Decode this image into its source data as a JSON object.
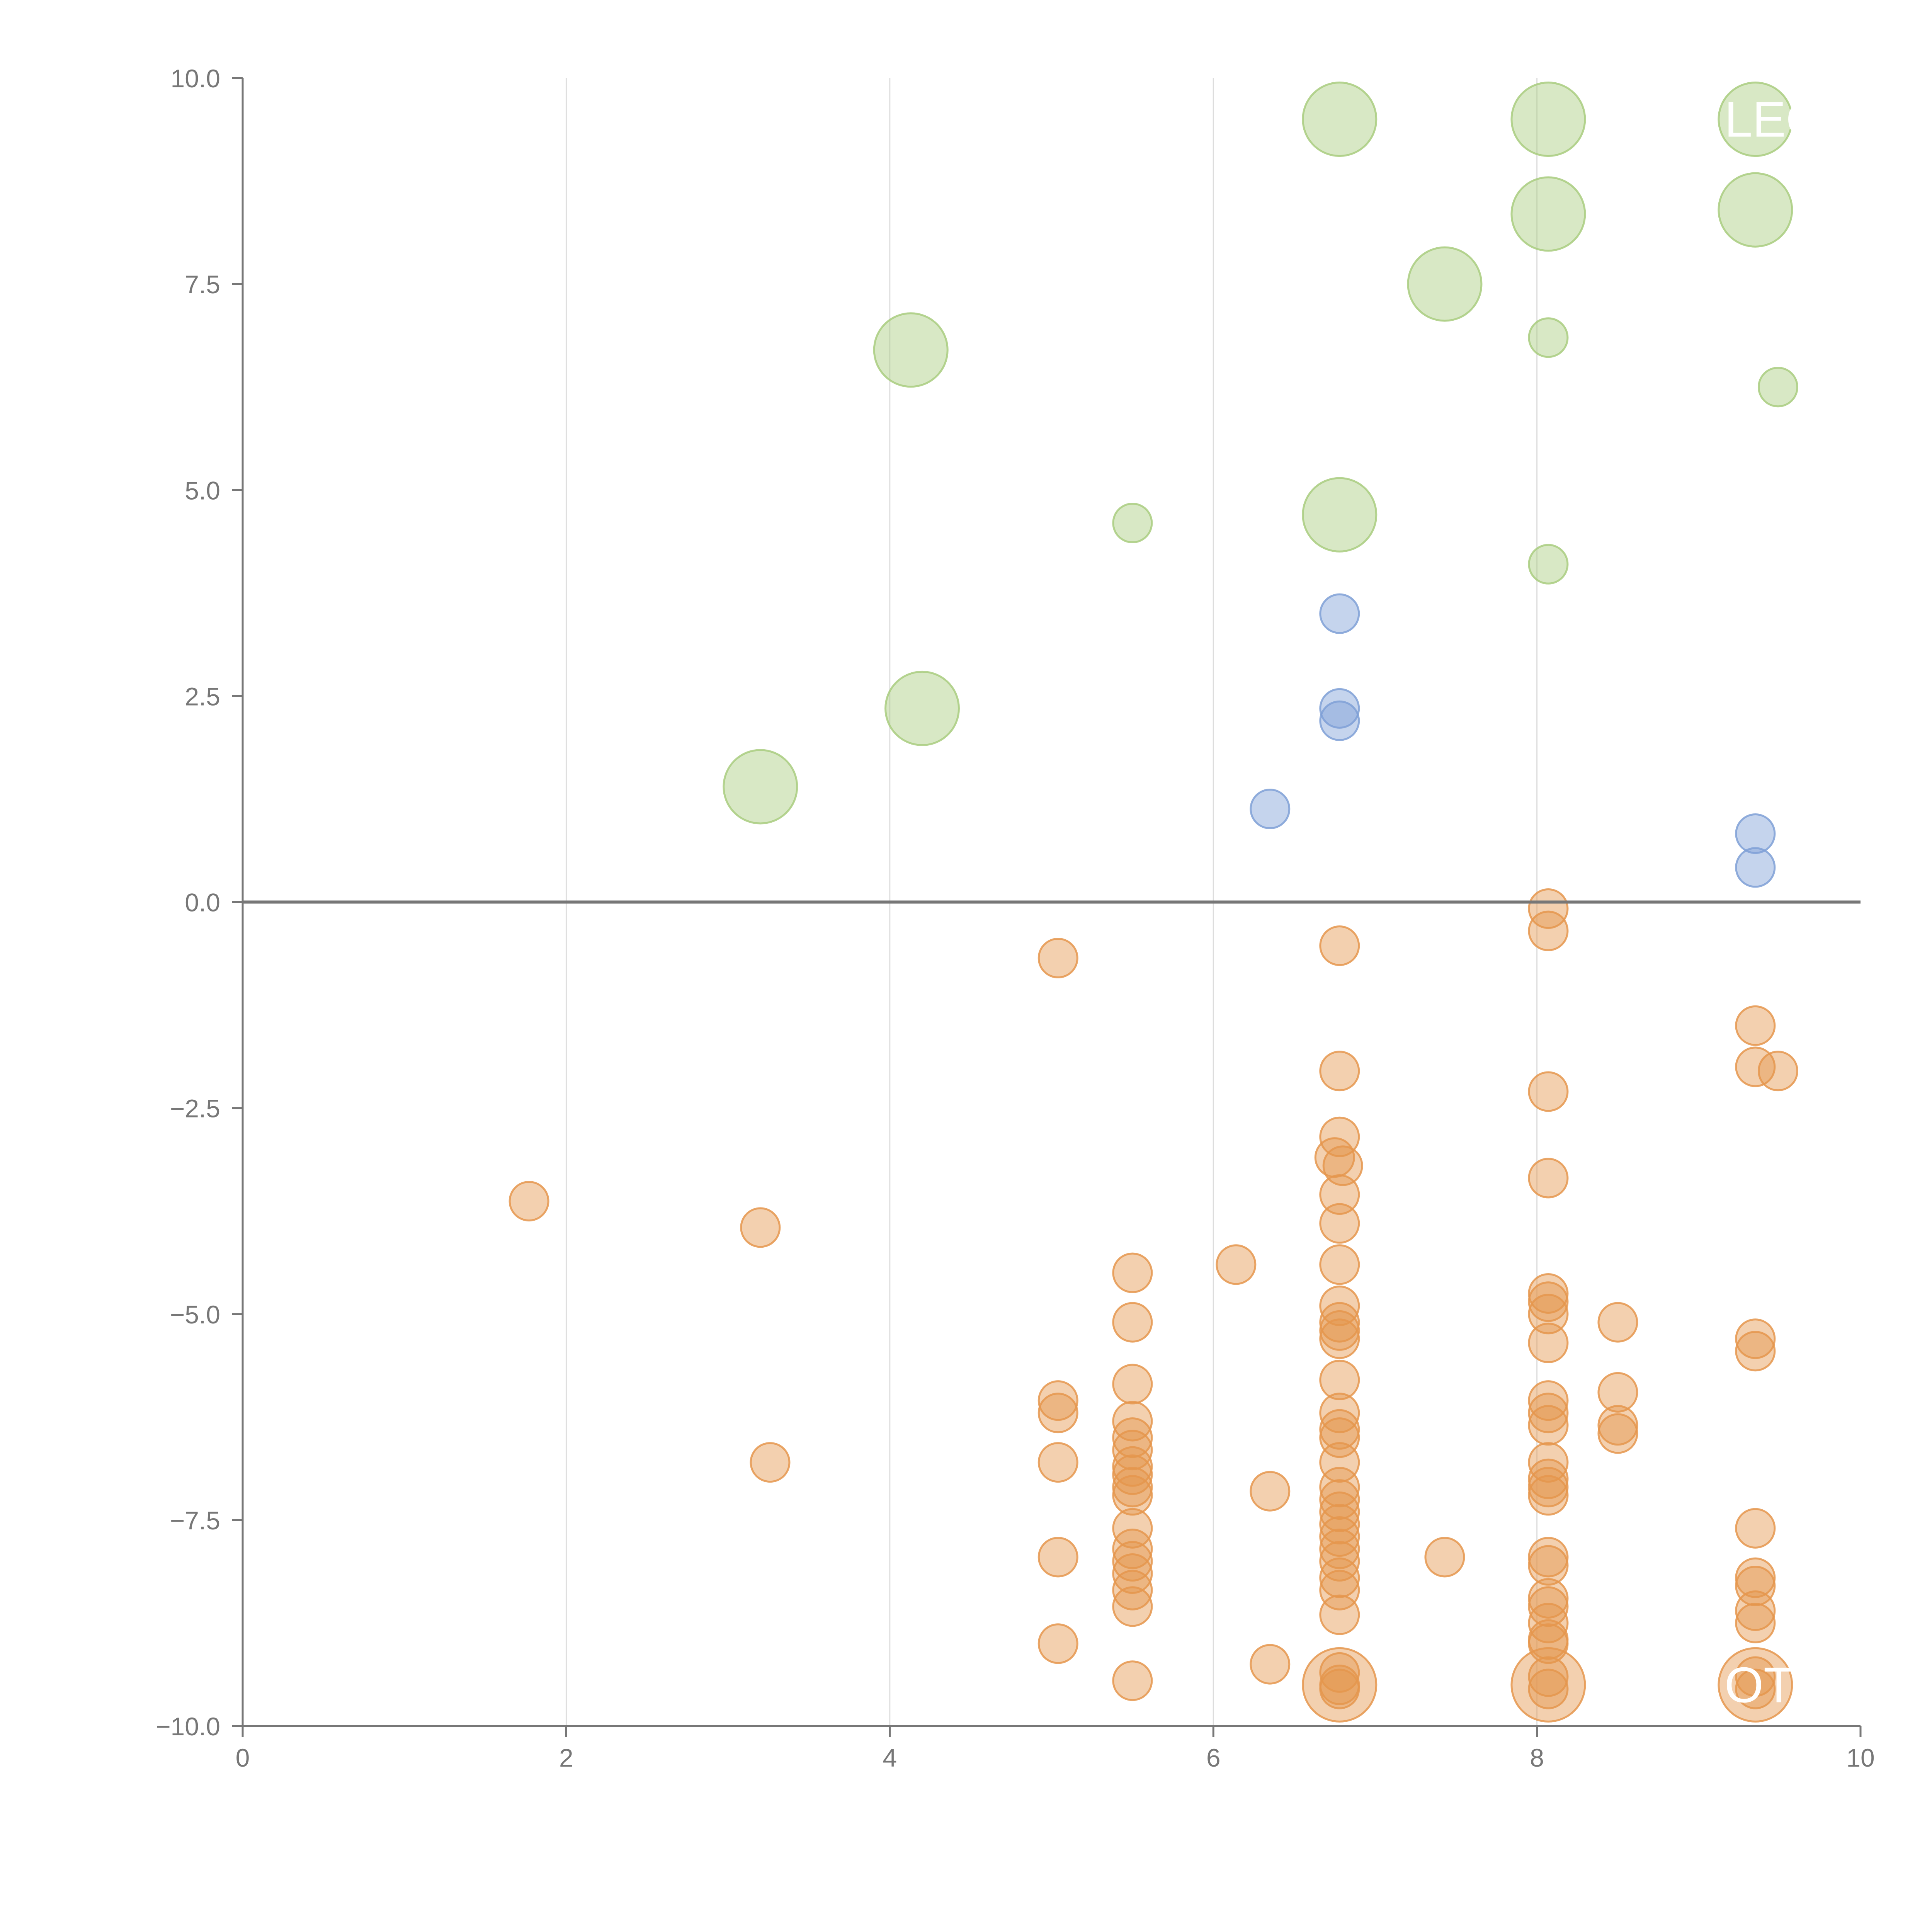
{
  "chart_data": {
    "type": "scatter",
    "title": "",
    "xlabel": "",
    "ylabel": "",
    "xlim": [
      0,
      10
    ],
    "ylim": [
      -10,
      10
    ],
    "x_ticks": [
      0,
      2,
      4,
      6,
      8,
      10
    ],
    "y_ticks": [
      10,
      7.5,
      5,
      2.5,
      0,
      -2.5,
      -5,
      -7.5,
      -10
    ],
    "x_tick_labels": [
      "0",
      "2",
      "4",
      "6",
      "8",
      "10"
    ],
    "y_tick_labels": [
      "10.0",
      "7.5",
      "5.0",
      "2.5",
      "0.0",
      "−2.5",
      "−5.0",
      "−7.5",
      "−10.0"
    ],
    "vertical_gridlines": true,
    "zero_line": true,
    "colors": {
      "green": "#a9cc7f",
      "blue": "#7fa0d6",
      "orange": "#e5964e",
      "axis": "#777777",
      "grid": "#dddddd"
    },
    "series": [
      {
        "name": "green",
        "color": "#a9cc7f",
        "points": [
          [
            6.78,
            9.5,
            2
          ],
          [
            8.07,
            9.5,
            2
          ],
          [
            9.35,
            9.5,
            2
          ],
          [
            8.07,
            8.35,
            2
          ],
          [
            9.35,
            8.4,
            2
          ],
          [
            7.43,
            7.5,
            2
          ],
          [
            4.13,
            6.7,
            2
          ],
          [
            8.07,
            6.85,
            1
          ],
          [
            9.49,
            6.25,
            1
          ],
          [
            5.5,
            4.6,
            1
          ],
          [
            6.78,
            4.7,
            2
          ],
          [
            8.07,
            4.1,
            1
          ],
          [
            4.2,
            2.35,
            2
          ],
          [
            3.2,
            1.4,
            2
          ]
        ]
      },
      {
        "name": "blue",
        "color": "#7fa0d6",
        "points": [
          [
            6.78,
            3.5,
            1
          ],
          [
            6.78,
            2.35,
            1
          ],
          [
            6.78,
            2.2,
            1
          ],
          [
            6.35,
            1.13,
            1
          ],
          [
            9.35,
            0.83,
            1
          ],
          [
            9.35,
            0.42,
            1
          ]
        ]
      },
      {
        "name": "orange",
        "color": "#e5964e",
        "points": [
          [
            8.07,
            -0.08,
            1
          ],
          [
            8.07,
            -0.35,
            1
          ],
          [
            5.04,
            -0.68,
            1
          ],
          [
            6.78,
            -0.53,
            1
          ],
          [
            9.35,
            -1.5,
            1
          ],
          [
            9.35,
            -2.0,
            1
          ],
          [
            9.49,
            -2.05,
            1
          ],
          [
            6.78,
            -2.05,
            1
          ],
          [
            8.07,
            -2.3,
            1
          ],
          [
            1.77,
            -3.63,
            1
          ],
          [
            3.2,
            -3.95,
            1
          ],
          [
            6.78,
            -2.85,
            1
          ],
          [
            6.75,
            -3.1,
            1
          ],
          [
            6.8,
            -3.2,
            1
          ],
          [
            6.78,
            -3.55,
            1
          ],
          [
            6.78,
            -3.9,
            1
          ],
          [
            8.07,
            -3.35,
            1
          ],
          [
            5.5,
            -4.5,
            1
          ],
          [
            6.14,
            -4.4,
            1
          ],
          [
            6.78,
            -4.4,
            1
          ],
          [
            8.07,
            -4.75,
            1
          ],
          [
            8.07,
            -4.85,
            1
          ],
          [
            8.07,
            -5.0,
            1
          ],
          [
            8.07,
            -5.35,
            1
          ],
          [
            6.78,
            -4.9,
            1
          ],
          [
            6.78,
            -5.1,
            1
          ],
          [
            6.78,
            -5.2,
            1
          ],
          [
            6.78,
            -5.3,
            1
          ],
          [
            8.5,
            -5.1,
            1
          ],
          [
            5.5,
            -5.1,
            1
          ],
          [
            9.35,
            -5.3,
            1
          ],
          [
            9.35,
            -5.45,
            1
          ],
          [
            5.5,
            -5.85,
            1
          ],
          [
            6.78,
            -5.8,
            1
          ],
          [
            5.04,
            -6.05,
            1
          ],
          [
            5.04,
            -6.2,
            1
          ],
          [
            8.07,
            -6.05,
            1
          ],
          [
            8.07,
            -6.2,
            1
          ],
          [
            8.07,
            -6.35,
            1
          ],
          [
            8.5,
            -5.95,
            1
          ],
          [
            8.5,
            -6.35,
            1
          ],
          [
            8.5,
            -6.45,
            1
          ],
          [
            6.78,
            -6.2,
            1
          ],
          [
            6.78,
            -6.4,
            1
          ],
          [
            6.78,
            -6.5,
            1
          ],
          [
            5.5,
            -6.3,
            1
          ],
          [
            5.5,
            -6.5,
            1
          ],
          [
            5.5,
            -6.65,
            1
          ],
          [
            3.26,
            -6.8,
            1
          ],
          [
            5.04,
            -6.8,
            1
          ],
          [
            5.5,
            -6.85,
            1
          ],
          [
            5.5,
            -6.95,
            1
          ],
          [
            5.5,
            -7.1,
            1
          ],
          [
            5.5,
            -7.2,
            1
          ],
          [
            6.78,
            -6.8,
            1
          ],
          [
            6.78,
            -7.1,
            1
          ],
          [
            6.78,
            -7.25,
            1
          ],
          [
            6.78,
            -7.4,
            1
          ],
          [
            6.78,
            -7.55,
            1
          ],
          [
            6.78,
            -7.7,
            1
          ],
          [
            6.78,
            -7.85,
            1
          ],
          [
            6.78,
            -8.0,
            1
          ],
          [
            6.78,
            -8.2,
            1
          ],
          [
            6.78,
            -8.35,
            1
          ],
          [
            6.78,
            -8.65,
            1
          ],
          [
            6.35,
            -7.15,
            1
          ],
          [
            8.07,
            -6.8,
            1
          ],
          [
            8.07,
            -7.0,
            1
          ],
          [
            8.07,
            -7.1,
            1
          ],
          [
            8.07,
            -7.2,
            1
          ],
          [
            5.5,
            -7.6,
            1
          ],
          [
            5.5,
            -7.85,
            1
          ],
          [
            5.5,
            -8.0,
            1
          ],
          [
            5.5,
            -8.15,
            1
          ],
          [
            5.5,
            -8.35,
            1
          ],
          [
            5.5,
            -8.55,
            1
          ],
          [
            5.04,
            -7.95,
            1
          ],
          [
            7.43,
            -7.95,
            1
          ],
          [
            8.07,
            -7.95,
            1
          ],
          [
            8.07,
            -8.05,
            1
          ],
          [
            8.07,
            -8.45,
            1
          ],
          [
            8.07,
            -8.55,
            1
          ],
          [
            8.07,
            -8.75,
            1
          ],
          [
            8.07,
            -8.95,
            1
          ],
          [
            8.07,
            -9.0,
            1
          ],
          [
            9.35,
            -7.6,
            1
          ],
          [
            9.35,
            -8.2,
            1
          ],
          [
            9.35,
            -8.3,
            1
          ],
          [
            9.35,
            -8.6,
            1
          ],
          [
            9.35,
            -8.75,
            1
          ],
          [
            5.04,
            -9.0,
            1
          ],
          [
            6.35,
            -9.25,
            1
          ],
          [
            5.5,
            -9.45,
            1
          ],
          [
            6.78,
            -9.35,
            1
          ],
          [
            6.78,
            -9.5,
            1
          ],
          [
            6.78,
            -9.55,
            1
          ],
          [
            8.07,
            -9.4,
            1
          ],
          [
            8.07,
            -9.55,
            1
          ],
          [
            9.35,
            -9.4,
            1
          ],
          [
            9.35,
            -9.55,
            1
          ],
          [
            6.78,
            -9.5,
            2
          ],
          [
            8.07,
            -9.5,
            2
          ],
          [
            9.35,
            -9.5,
            2
          ]
        ]
      }
    ],
    "annotations": [
      {
        "text": "LEO",
        "x": 9.35,
        "y": 9.5
      },
      {
        "text": "OT",
        "x": 9.35,
        "y": -9.5
      }
    ]
  }
}
